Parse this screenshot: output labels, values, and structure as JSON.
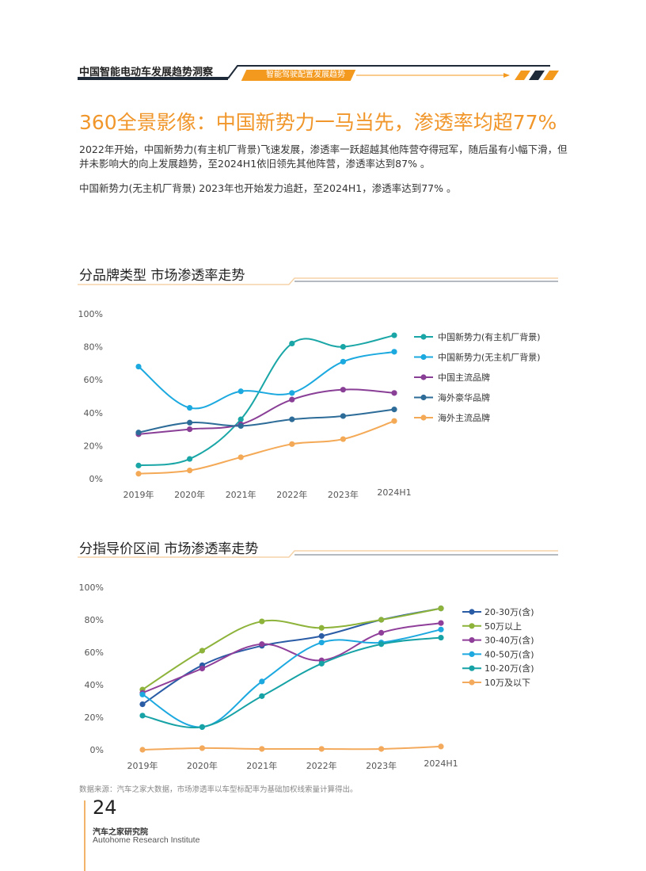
{
  "header": {
    "report_title": "中国智能电动车发展趋势洞察",
    "section_tag": "智能驾驶配置发展趋势"
  },
  "page_title": "360全景影像：中国新势力一马当先，渗透率均超77%",
  "paragraphs": [
    "2022年开始，中国新势力(有主机厂背景)飞速发展，渗透率一跃超越其他阵营夺得冠军，随后虽有小幅下滑，但并未影响大的向上发展趋势，至2024H1依旧领先其他阵营，渗透率达到87% 。",
    "中国新势力(无主机厂背景) 2023年也开始发力追赶，至2024H1，渗透率达到77% 。"
  ],
  "colors": {
    "accent": "#f0962a",
    "dark": "#1f2a38"
  },
  "chart_data": [
    {
      "type": "line",
      "title": "分品牌类型  市场渗透率走势",
      "categories": [
        "2019年",
        "2020年",
        "2021年",
        "2022年",
        "2023年",
        "2024H1"
      ],
      "yticks": [
        "0%",
        "20%",
        "40%",
        "60%",
        "80%",
        "100%"
      ],
      "ylim": [
        0,
        100
      ],
      "legend_position": "right",
      "series": [
        {
          "name": "中国新势力(有主机厂背景)",
          "color": "#1aa6a6",
          "values": [
            8,
            12,
            36,
            82,
            80,
            87
          ]
        },
        {
          "name": "中国新势力(无主机厂背景)",
          "color": "#1ba9df",
          "values": [
            68,
            43,
            53,
            52,
            71,
            77
          ]
        },
        {
          "name": "中国主流品牌",
          "color": "#8a3f97",
          "values": [
            27,
            30,
            33,
            48,
            54,
            52
          ]
        },
        {
          "name": "海外豪华品牌",
          "color": "#2d6c98",
          "values": [
            28,
            34,
            32,
            36,
            38,
            42
          ]
        },
        {
          "name": "海外主流品牌",
          "color": "#f4a956",
          "values": [
            3,
            5,
            13,
            21,
            24,
            35
          ]
        }
      ]
    },
    {
      "type": "line",
      "title": "分指导价区间  市场渗透率走势",
      "categories": [
        "2019年",
        "2020年",
        "2021年",
        "2022年",
        "2023年",
        "2024H1"
      ],
      "yticks": [
        "0%",
        "20%",
        "40%",
        "60%",
        "80%",
        "100%"
      ],
      "ylim": [
        0,
        100
      ],
      "legend_position": "right",
      "series": [
        {
          "name": "20-30万(含)",
          "color": "#2a5ca6",
          "values": [
            28,
            52,
            64,
            70,
            80,
            87
          ]
        },
        {
          "name": "50万以上",
          "color": "#8db33a",
          "values": [
            37,
            61,
            79,
            75,
            80,
            87
          ]
        },
        {
          "name": "30-40万(含)",
          "color": "#8f3f9a",
          "values": [
            35,
            50,
            65,
            55,
            72,
            78
          ]
        },
        {
          "name": "40-50万(含)",
          "color": "#1da9e0",
          "values": [
            34,
            14,
            42,
            66,
            66,
            74
          ]
        },
        {
          "name": "10-20万(含)",
          "color": "#17a2a6",
          "values": [
            21,
            14,
            33,
            53,
            65,
            69
          ]
        },
        {
          "name": "10万及以下",
          "color": "#f4aa5c",
          "values": [
            0,
            1,
            0.5,
            0.5,
            0.5,
            2
          ]
        }
      ]
    }
  ],
  "footer": {
    "source": "数据来源：汽车之家大数据，市场渗透率以车型标配率为基础加权线索量计算得出。",
    "page_number": "24",
    "org_cn": "汽车之家研究院",
    "org_en": "Autohome Research Institute"
  }
}
